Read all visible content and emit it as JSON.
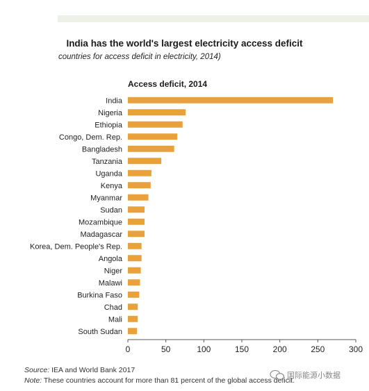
{
  "title": "India has the world's largest electricity access deficit",
  "subtitle": "countries for access deficit in electricity, 2014)",
  "chart_data": {
    "type": "bar",
    "orientation": "horizontal",
    "title": "Access deficit, 2014",
    "xlabel": "",
    "ylabel": "",
    "xlim": [
      0,
      300
    ],
    "ticks": [
      0,
      50,
      100,
      150,
      200,
      250,
      300
    ],
    "grid": false,
    "bar_color": "#e9a13b",
    "categories": [
      "India",
      "Nigeria",
      "Ethiopia",
      "Congo, Dem. Rep.",
      "Bangladesh",
      "Tanzania",
      "Uganda",
      "Kenya",
      "Myanmar",
      "Sudan",
      "Mozambique",
      "Madagascar",
      "Korea, Dem. People's Rep.",
      "Angola",
      "Niger",
      "Malawi",
      "Burkina Faso",
      "Chad",
      "Mali",
      "South Sudan"
    ],
    "values": [
      270,
      76,
      72,
      65,
      61,
      44,
      31,
      30,
      27,
      22,
      22,
      22,
      18,
      18,
      17,
      16,
      15,
      13,
      13,
      12
    ]
  },
  "footer": {
    "source_label": "Source:",
    "source_text": " IEA and World Bank 2017",
    "note_label": "Note:",
    "note_text": " These countries account for more than 81 percent of the global access deficit."
  },
  "watermark": "国际能源小数据"
}
